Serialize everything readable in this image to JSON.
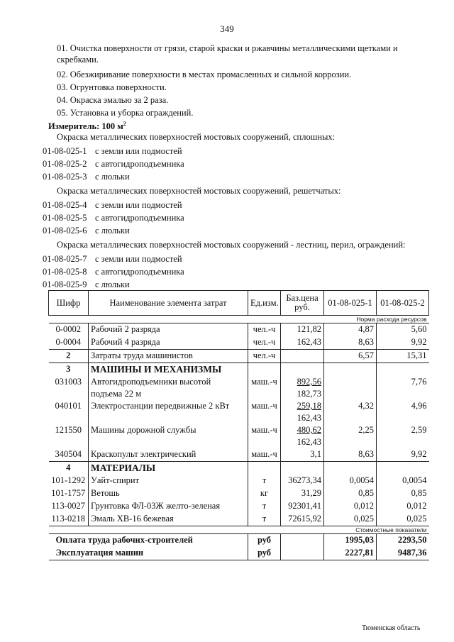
{
  "page_number": "349",
  "steps": [
    "01. Очистка поверхности от грязи, старой краски и ржавчины металлическими щетками и",
    "скребками.",
    "02. Обезжиривание поверхности в местах промасленных и сильной коррозии.",
    "03. Огрунтовка поверхности.",
    "04. Окраска эмалью за 2 раза.",
    "05. Установка и уборка ограждений."
  ],
  "measure": "Измеритель: 100 м",
  "measure_sup": "2",
  "groups": [
    {
      "title": "Окраска металлических поверхностей мостовых сооружений, сплошных:",
      "items": [
        [
          "01-08-025-1",
          "с земли или подмостей"
        ],
        [
          "01-08-025-2",
          "с автогидроподъемника"
        ],
        [
          "01-08-025-3",
          "с люльки"
        ]
      ]
    },
    {
      "title": "Окраска металлических поверхностей мостовых сооружений, решетчатых:",
      "items": [
        [
          "01-08-025-4",
          "с земли или подмостей"
        ],
        [
          "01-08-025-5",
          "с автогидроподъемника"
        ],
        [
          "01-08-025-6",
          "с люльки"
        ]
      ]
    },
    {
      "title": "Окраска металлических поверхностей мостовых сооружений - лестниц, перил, ограждений:",
      "items": [
        [
          "01-08-025-7",
          "с земли или подмостей"
        ],
        [
          "01-08-025-8",
          "с автогидроподъемника"
        ],
        [
          "01-08-025-9",
          "с люльки"
        ]
      ]
    }
  ],
  "table": {
    "headers": [
      "Шифр",
      "Наименование элемента затрат",
      "Ед.изм.",
      "Баз.цена руб.",
      "01-08-025-1",
      "01-08-025-2"
    ],
    "norm_label": "Норма расхода ресурсов",
    "cost_label": "Стоимостные показатели",
    "rows": [
      {
        "code": "0-0002",
        "name": "Рабочий  2 разряда",
        "unit": "чел.-ч",
        "price": "121,82",
        "v1": "4,87",
        "v2": "5,60"
      },
      {
        "code": "0-0004",
        "name": "Рабочий  4 разряда",
        "unit": "чел.-ч",
        "price": "162,43",
        "v1": "8,63",
        "v2": "9,92"
      },
      {
        "code": "2",
        "name": "Затраты труда машинистов",
        "unit": "чел.-ч",
        "price": "",
        "v1": "6,57",
        "v2": "15,31"
      },
      {
        "code": "3",
        "name": "МАШИНЫ И МЕХАНИЗМЫ"
      },
      {
        "code": "031003",
        "name": "Автогидроподъемники высотой",
        "name2": "подъема 22 м",
        "unit": "маш.-ч",
        "price": "892,56",
        "price2": "182,73",
        "v1": "",
        "v2": "7,76"
      },
      {
        "code": "040101",
        "name": "Электростанции передвижные 2 кВт",
        "unit": "маш.-ч",
        "price": "259,18",
        "price2": "162,43",
        "v1": "4,32",
        "v2": "4,96"
      },
      {
        "code": "121550",
        "name": "Машины дорожной службы",
        "unit": "маш.-ч",
        "price": "480,62",
        "price2": "162,43",
        "v1": "2,25",
        "v2": "2,59"
      },
      {
        "code": "340504",
        "name": "Краскопульт электрический",
        "unit": "маш.-ч",
        "price": "3,1",
        "v1": "8,63",
        "v2": "9,92"
      },
      {
        "code": "4",
        "name": "МАТЕРИАЛЫ"
      },
      {
        "code": "101-1292",
        "name": "Уайт-спирит",
        "unit": "т",
        "price": "36273,34",
        "v1": "0,0054",
        "v2": "0,0054"
      },
      {
        "code": "101-1757",
        "name": "Ветошь",
        "unit": "кг",
        "price": "31,29",
        "v1": "0,85",
        "v2": "0,85"
      },
      {
        "code": "113-0027",
        "name": "Грунтовка ФЛ-03Ж желто-зеленая",
        "unit": "т",
        "price": "92301,41",
        "v1": "0,012",
        "v2": "0,012"
      },
      {
        "code": "113-0218",
        "name": "Эмаль ХВ-16 бежевая",
        "unit": "т",
        "price": "72615,92",
        "v1": "0,025",
        "v2": "0,025"
      }
    ],
    "totals": [
      {
        "name": "Оплата труда рабочих-строителей",
        "unit": "руб",
        "v1": "1995,03",
        "v2": "2293,50"
      },
      {
        "name": "Эксплуатация машин",
        "unit": "руб",
        "v1": "2227,81",
        "v2": "9487,36"
      }
    ]
  },
  "footer": "Тюменская область"
}
